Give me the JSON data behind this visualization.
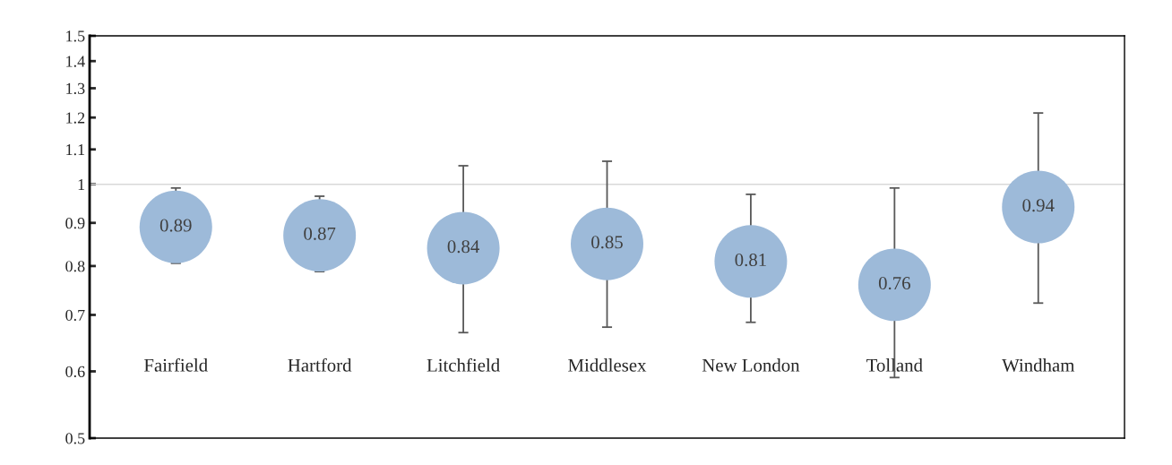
{
  "chart_data": {
    "type": "scatter",
    "categories": [
      "Fairfield",
      "Hartford",
      "Litchfield",
      "Middlesex",
      "New London",
      "Tolland",
      "Windham"
    ],
    "series": [
      {
        "color": "#9dbad9",
        "values": [
          0.89,
          0.87,
          0.84,
          0.85,
          0.81,
          0.76,
          0.94
        ],
        "errors": [
          [
            0.806,
            0.99
          ],
          [
            0.788,
            0.968
          ],
          [
            0.667,
            1.052
          ],
          [
            0.677,
            1.065
          ],
          [
            0.686,
            0.973
          ],
          [
            0.59,
            0.99
          ],
          [
            0.723,
            1.215
          ]
        ]
      }
    ],
    "data_labels": true,
    "marker": "circle",
    "log": "y",
    "ylim": [
      0.5,
      1.5
    ],
    "yticks": [
      0.5,
      0.6,
      0.7,
      0.8,
      0.9,
      1,
      1.1,
      1.2,
      1.3,
      1.4,
      1.5
    ],
    "ref_lines": [
      {
        "axis": "y",
        "value": 1,
        "color": "#d9d9d9"
      }
    ],
    "grid": false,
    "legend": false
  }
}
